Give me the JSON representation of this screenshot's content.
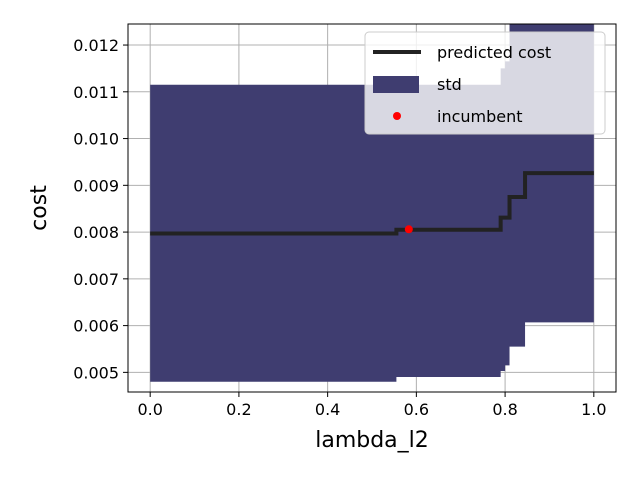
{
  "chart_data": {
    "type": "line",
    "xlabel": "lambda_l2",
    "ylabel": "cost",
    "xlim": [
      -0.05,
      1.05
    ],
    "ylim": [
      0.00458,
      0.01245
    ],
    "x_ticks": [
      0.0,
      0.2,
      0.4,
      0.6,
      0.8,
      1.0
    ],
    "x_tick_labels": [
      "0.0",
      "0.2",
      "0.4",
      "0.6",
      "0.8",
      "1.0"
    ],
    "y_ticks": [
      0.005,
      0.006,
      0.007,
      0.008,
      0.009,
      0.01,
      0.011,
      0.012
    ],
    "y_tick_labels": [
      "0.005",
      "0.006",
      "0.007",
      "0.008",
      "0.009",
      "0.010",
      "0.011",
      "0.012"
    ],
    "grid": true,
    "legend_position": "top-right",
    "legend": {
      "line_label": "predicted cost",
      "band_label": "std",
      "point_label": "incumbent"
    },
    "colors": {
      "line": "#222222",
      "band": "#3f3d70",
      "point": "#ff0000",
      "grid": "#b0b0b0"
    },
    "series": [
      {
        "name": "predicted cost",
        "kind": "step-line",
        "x": [
          0.0,
          0.555,
          0.555,
          0.79,
          0.79,
          0.81,
          0.81,
          0.845,
          0.845,
          1.0
        ],
        "y": [
          0.00797,
          0.00797,
          0.00805,
          0.00805,
          0.00831,
          0.00831,
          0.00875,
          0.00875,
          0.00926,
          0.00926
        ]
      },
      {
        "name": "std",
        "kind": "band",
        "x": [
          0.0,
          0.555,
          0.555,
          0.79,
          0.79,
          0.8,
          0.8,
          0.81,
          0.81,
          0.845,
          0.845,
          1.0
        ],
        "upper": [
          0.01115,
          0.01115,
          0.01115,
          0.01115,
          0.0115,
          0.0115,
          0.01165,
          0.01165,
          0.01245,
          0.01245,
          0.01245,
          0.01245
        ],
        "lower": [
          0.0048,
          0.0048,
          0.0049,
          0.0049,
          0.00503,
          0.00503,
          0.00515,
          0.00515,
          0.00555,
          0.00555,
          0.00607,
          0.00607
        ]
      },
      {
        "name": "incumbent",
        "kind": "scatter",
        "x": [
          0.583
        ],
        "y": [
          0.00806
        ]
      }
    ]
  }
}
